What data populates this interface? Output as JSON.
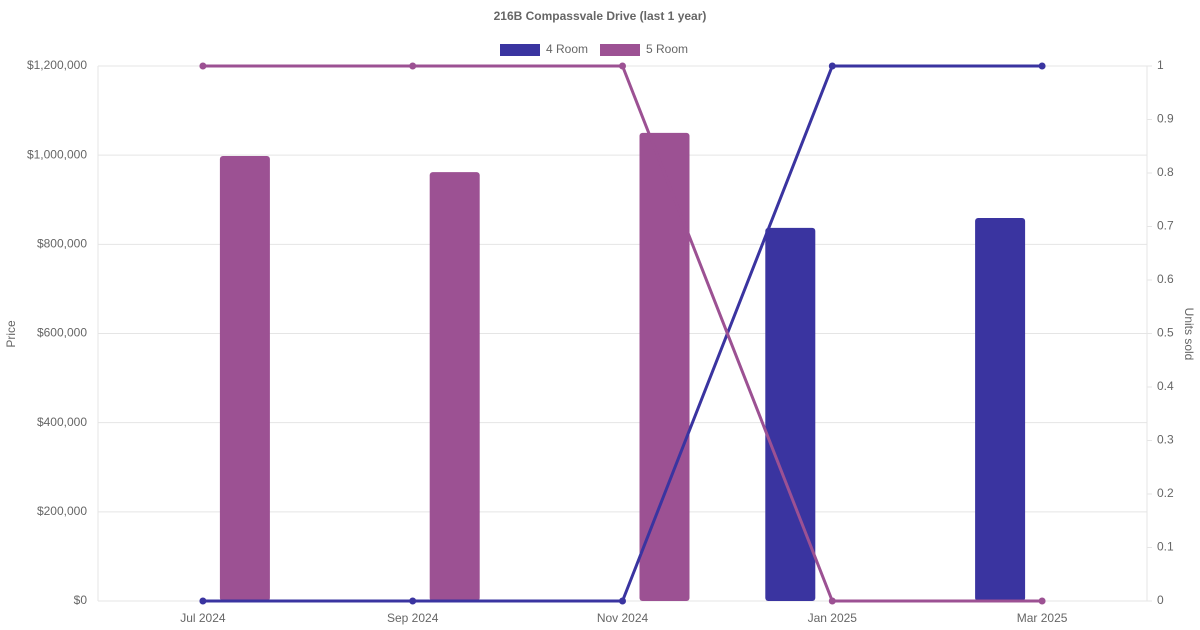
{
  "chart_data": {
    "type": "bar-line",
    "title": "216B Compassvale Drive (last 1 year)",
    "categories": [
      "Jul 2024",
      "Sep 2024",
      "Nov 2024",
      "Jan 2025",
      "Mar 2025"
    ],
    "ylabel": "Price",
    "y2label": "Units sold",
    "series": [
      {
        "name": "4 Room",
        "color": "#3a34a0",
        "values": [
          null,
          null,
          null,
          837000,
          859000
        ],
        "units_sold": [
          0,
          0,
          0,
          1,
          1
        ]
      },
      {
        "name": "5 Room",
        "color": "#9c5193",
        "values": [
          998000,
          962000,
          1050000,
          null,
          null
        ],
        "units_sold": [
          1,
          1,
          1,
          0,
          0
        ]
      }
    ],
    "ylim": [
      0,
      1200000
    ],
    "yticks": [
      {
        "value": 0,
        "label": "$0"
      },
      {
        "value": 200000,
        "label": "$200,000"
      },
      {
        "value": 400000,
        "label": "$400,000"
      },
      {
        "value": 600000,
        "label": "$600,000"
      },
      {
        "value": 800000,
        "label": "$800,000"
      },
      {
        "value": 1000000,
        "label": "$1,000,000"
      },
      {
        "value": 1200000,
        "label": "$1,200,000"
      }
    ],
    "y2lim": [
      0,
      1
    ],
    "y2ticks": [
      0,
      0.1,
      0.2,
      0.3,
      0.4,
      0.5,
      0.6,
      0.7,
      0.8,
      0.9,
      1
    ],
    "grid": true,
    "legend": "top"
  }
}
